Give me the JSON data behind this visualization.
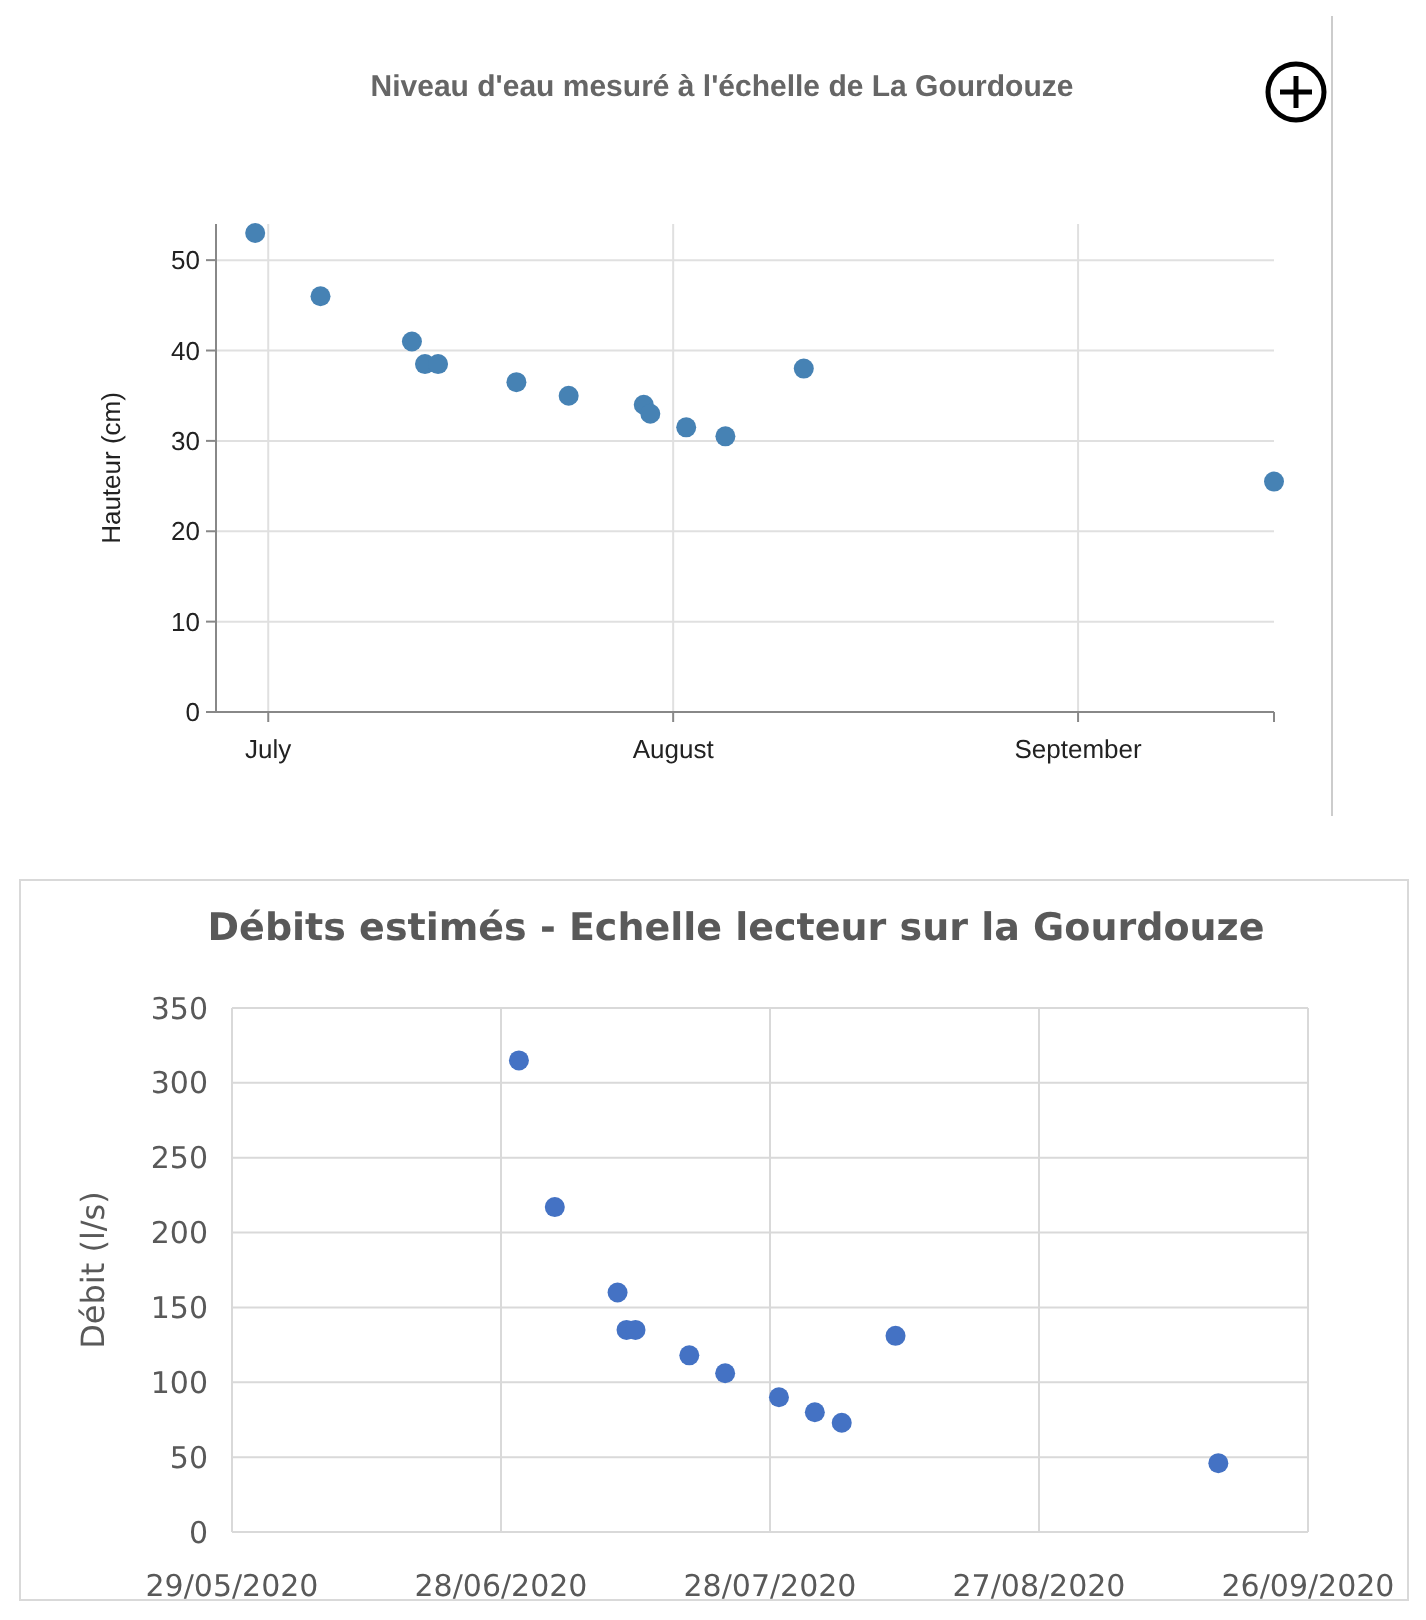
{
  "chart_data": [
    {
      "type": "scatter",
      "title": "Niveau d'eau mesuré à l'échelle de La Gourdouze",
      "ylabel": "Hauteur (cm)",
      "marker": "circle",
      "grid": true,
      "x": [
        "2020-06-30",
        "2020-07-05",
        "2020-07-12",
        "2020-07-13",
        "2020-07-14",
        "2020-07-20",
        "2020-07-24",
        "2020-07-29T18:00",
        "2020-07-30T06:00",
        "2020-08-02",
        "2020-08-05",
        "2020-08-11",
        "2020-09-16"
      ],
      "series": [
        {
          "color": "#4682b4",
          "values": [
            53,
            46,
            41,
            38.5,
            38.5,
            36.5,
            35,
            34,
            33,
            31.5,
            30.5,
            38,
            25.5
          ]
        }
      ],
      "xlim": [
        "2020-06-27",
        "2020-09-16"
      ],
      "xticks": [
        {
          "value": "2020-07-01",
          "label": "July"
        },
        {
          "value": "2020-08-01",
          "label": "August"
        },
        {
          "value": "2020-09-01",
          "label": "September"
        }
      ],
      "ylim": [
        0,
        54
      ],
      "yticks": [
        0,
        10,
        20,
        30,
        40,
        50
      ]
    },
    {
      "type": "scatter",
      "title": "Débits estimés - Echelle lecteur sur la Gourdouze",
      "ylabel": "Débit (l/s)",
      "marker": "circle",
      "grid": true,
      "x": [
        "2020-06-30",
        "2020-07-04",
        "2020-07-11",
        "2020-07-12",
        "2020-07-13",
        "2020-07-19",
        "2020-07-23",
        "2020-07-29",
        "2020-08-02",
        "2020-08-05",
        "2020-08-11",
        "2020-09-16"
      ],
      "series": [
        {
          "color": "#4472c4",
          "values": [
            315,
            217,
            160,
            135,
            135,
            118,
            106,
            90,
            80,
            73,
            131,
            46
          ]
        }
      ],
      "xlim": [
        "2020-05-29",
        "2020-09-26"
      ],
      "xticks": [
        {
          "value": "2020-05-29",
          "label": "29/05/2020"
        },
        {
          "value": "2020-06-28",
          "label": "28/06/2020"
        },
        {
          "value": "2020-07-28",
          "label": "28/07/2020"
        },
        {
          "value": "2020-08-27",
          "label": "27/08/2020"
        },
        {
          "value": "2020-09-26",
          "label": "26/09/2020"
        }
      ],
      "ylim": [
        0,
        350
      ],
      "yticks": [
        0,
        50,
        100,
        150,
        200,
        250,
        300,
        350
      ]
    }
  ]
}
